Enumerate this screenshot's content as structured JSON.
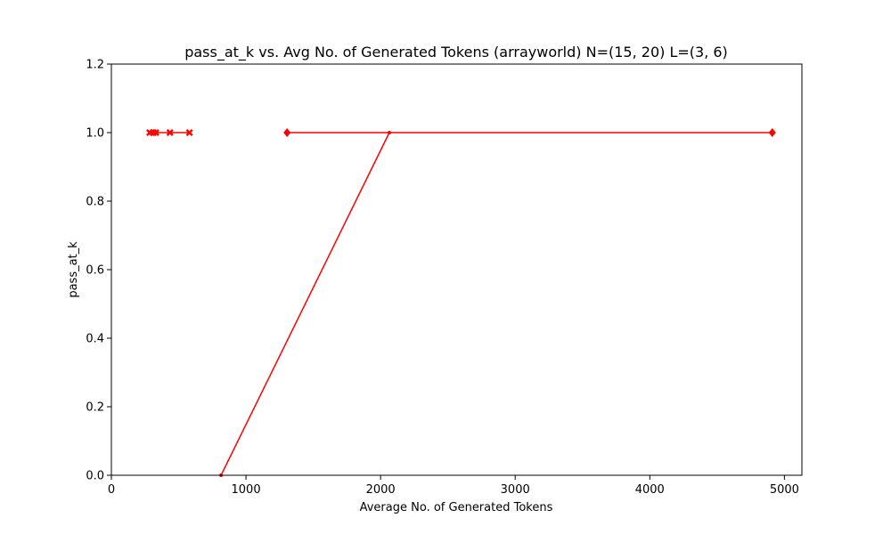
{
  "chart_data": {
    "type": "line",
    "title": "pass_at_k vs. Avg No. of Generated Tokens (arrayworld) N=(15, 20) L=(3, 6)",
    "xlabel": "Average No. of Generated Tokens",
    "ylabel": "pass_at_k",
    "xlim": [
      0,
      5130
    ],
    "ylim": [
      0,
      1.2
    ],
    "xticks": [
      0,
      1000,
      2000,
      3000,
      4000,
      5000
    ],
    "yticks": [
      0.0,
      0.2,
      0.4,
      0.6,
      0.8,
      1.0,
      1.2
    ],
    "xtick_labels": [
      "0",
      "1000",
      "2000",
      "3000",
      "4000",
      "5000"
    ],
    "ytick_labels": [
      "0.0",
      "0.2",
      "0.4",
      "0.6",
      "0.8",
      "1.0",
      "1.2"
    ],
    "grid": false,
    "legend": false,
    "color": "#ff0000",
    "series": [
      {
        "marker": "x",
        "x": [
          285,
          310,
          330,
          435,
          580
        ],
        "y": [
          1.0,
          1.0,
          1.0,
          1.0,
          1.0
        ]
      },
      {
        "marker": "diamond",
        "x": [
          1305,
          4910
        ],
        "y": [
          1.0,
          1.0
        ]
      },
      {
        "marker": "dot",
        "x": [
          815,
          2065
        ],
        "y": [
          0.0,
          1.0
        ]
      }
    ]
  }
}
